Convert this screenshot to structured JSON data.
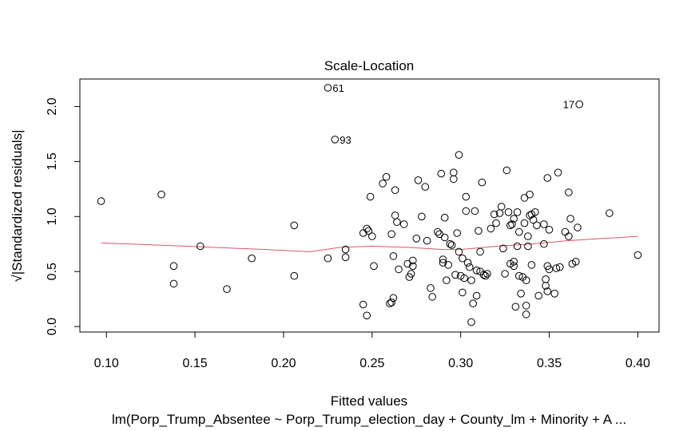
{
  "chart_data": {
    "type": "scatter",
    "title": "Scale-Location",
    "xlabel": "Fitted values",
    "ylabel": "√|Standardized residuals|",
    "subtitle": "lm(Porp_Trump_Absentee ~ Porp_Trump_election_day + County_lm + Minority + A ...",
    "xlim": [
      0.085,
      0.412
    ],
    "ylim": [
      -0.05,
      2.25
    ],
    "x_ticks": [
      0.1,
      0.15,
      0.2,
      0.25,
      0.3,
      0.35,
      0.4
    ],
    "x_tick_labels": [
      "0.10",
      "0.15",
      "0.20",
      "0.25",
      "0.30",
      "0.35",
      "0.40"
    ],
    "y_ticks": [
      0.0,
      0.5,
      1.0,
      1.5,
      2.0
    ],
    "y_tick_labels": [
      "0.0",
      "0.5",
      "1.0",
      "1.5",
      "2.0"
    ],
    "point_color": "#000000",
    "smooth_color": "#DF536B",
    "points": [
      [
        0.097,
        1.14
      ],
      [
        0.131,
        1.2
      ],
      [
        0.138,
        0.55
      ],
      [
        0.138,
        0.39
      ],
      [
        0.153,
        0.73
      ],
      [
        0.168,
        0.34
      ],
      [
        0.182,
        0.62
      ],
      [
        0.206,
        0.92
      ],
      [
        0.206,
        0.46
      ],
      [
        0.225,
        0.62
      ],
      [
        0.235,
        0.7
      ],
      [
        0.235,
        0.63
      ],
      [
        0.245,
        0.85
      ],
      [
        0.245,
        0.2
      ],
      [
        0.247,
        0.1
      ],
      [
        0.247,
        0.89
      ],
      [
        0.248,
        0.87
      ],
      [
        0.249,
        1.18
      ],
      [
        0.25,
        0.82
      ],
      [
        0.251,
        0.55
      ],
      [
        0.256,
        1.3
      ],
      [
        0.258,
        1.36
      ],
      [
        0.26,
        0.21
      ],
      [
        0.261,
        0.22
      ],
      [
        0.261,
        0.84
      ],
      [
        0.262,
        0.64
      ],
      [
        0.262,
        0.26
      ],
      [
        0.263,
        1.01
      ],
      [
        0.263,
        1.24
      ],
      [
        0.264,
        0.95
      ],
      [
        0.265,
        0.52
      ],
      [
        0.268,
        0.93
      ],
      [
        0.27,
        0.57
      ],
      [
        0.271,
        0.45
      ],
      [
        0.272,
        0.48
      ],
      [
        0.273,
        0.6
      ],
      [
        0.273,
        0.55
      ],
      [
        0.275,
        0.8
      ],
      [
        0.276,
        1.33
      ],
      [
        0.278,
        1.0
      ],
      [
        0.28,
        1.27
      ],
      [
        0.281,
        0.78
      ],
      [
        0.283,
        0.35
      ],
      [
        0.284,
        0.27
      ],
      [
        0.287,
        0.86
      ],
      [
        0.288,
        0.84
      ],
      [
        0.289,
        1.39
      ],
      [
        0.29,
        0.61
      ],
      [
        0.29,
        0.58
      ],
      [
        0.291,
        0.99
      ],
      [
        0.291,
        0.81
      ],
      [
        0.292,
        0.42
      ],
      [
        0.293,
        0.56
      ],
      [
        0.294,
        0.75
      ],
      [
        0.295,
        0.74
      ],
      [
        0.296,
        1.4
      ],
      [
        0.296,
        1.34
      ],
      [
        0.297,
        0.47
      ],
      [
        0.298,
        0.85
      ],
      [
        0.299,
        1.56
      ],
      [
        0.299,
        0.68
      ],
      [
        0.3,
        0.46
      ],
      [
        0.301,
        0.31
      ],
      [
        0.301,
        0.62
      ],
      [
        0.302,
        0.44
      ],
      [
        0.303,
        1.18
      ],
      [
        0.303,
        1.05
      ],
      [
        0.304,
        0.58
      ],
      [
        0.305,
        0.54
      ],
      [
        0.306,
        0.42
      ],
      [
        0.306,
        0.04
      ],
      [
        0.307,
        0.21
      ],
      [
        0.308,
        1.05
      ],
      [
        0.309,
        0.28
      ],
      [
        0.309,
        0.51
      ],
      [
        0.31,
        0.87
      ],
      [
        0.311,
        0.5
      ],
      [
        0.311,
        0.68
      ],
      [
        0.312,
        1.31
      ],
      [
        0.313,
        0.47
      ],
      [
        0.314,
        0.46
      ],
      [
        0.315,
        0.48
      ],
      [
        0.317,
        0.89
      ],
      [
        0.319,
        1.02
      ],
      [
        0.32,
        0.94
      ],
      [
        0.322,
        1.03
      ],
      [
        0.323,
        1.09
      ],
      [
        0.324,
        0.71
      ],
      [
        0.325,
        0.48
      ],
      [
        0.326,
        1.42
      ],
      [
        0.327,
        1.04
      ],
      [
        0.328,
        0.92
      ],
      [
        0.328,
        0.57
      ],
      [
        0.329,
        0.93
      ],
      [
        0.33,
        0.59
      ],
      [
        0.33,
        0.98
      ],
      [
        0.33,
        0.55
      ],
      [
        0.331,
        0.18
      ],
      [
        0.332,
        1.04
      ],
      [
        0.332,
        0.73
      ],
      [
        0.333,
        0.86
      ],
      [
        0.333,
        0.46
      ],
      [
        0.334,
        0.3
      ],
      [
        0.335,
        0.45
      ],
      [
        0.336,
        0.94
      ],
      [
        0.336,
        1.17
      ],
      [
        0.337,
        0.11
      ],
      [
        0.337,
        0.19
      ],
      [
        0.337,
        0.42
      ],
      [
        0.338,
        0.73
      ],
      [
        0.338,
        0.82
      ],
      [
        0.339,
        1.2
      ],
      [
        0.339,
        1.01
      ],
      [
        0.34,
        1.02
      ],
      [
        0.34,
        0.56
      ],
      [
        0.341,
        0.97
      ],
      [
        0.342,
        1.04
      ],
      [
        0.343,
        0.92
      ],
      [
        0.344,
        0.28
      ],
      [
        0.347,
        0.93
      ],
      [
        0.347,
        0.75
      ],
      [
        0.348,
        0.43
      ],
      [
        0.348,
        0.37
      ],
      [
        0.349,
        0.32
      ],
      [
        0.349,
        1.35
      ],
      [
        0.349,
        0.55
      ],
      [
        0.35,
        0.88
      ],
      [
        0.35,
        0.52
      ],
      [
        0.353,
        0.3
      ],
      [
        0.354,
        0.53
      ],
      [
        0.355,
        1.4
      ],
      [
        0.356,
        0.54
      ],
      [
        0.359,
        0.86
      ],
      [
        0.361,
        0.82
      ],
      [
        0.361,
        1.22
      ],
      [
        0.362,
        0.98
      ],
      [
        0.363,
        0.57
      ],
      [
        0.365,
        0.59
      ],
      [
        0.366,
        0.9
      ],
      [
        0.384,
        1.03
      ],
      [
        0.4,
        0.65
      ],
      [
        0.225,
        2.17
      ],
      [
        0.229,
        1.7
      ],
      [
        0.367,
        2.02
      ]
    ],
    "labeled_points": [
      {
        "id": "61",
        "x": 0.225,
        "y": 2.17,
        "label_side": "right"
      },
      {
        "id": "93",
        "x": 0.229,
        "y": 1.7,
        "label_side": "right"
      },
      {
        "id": "17",
        "x": 0.367,
        "y": 2.02,
        "label_side": "left"
      }
    ],
    "smooth_line": [
      [
        0.097,
        0.76
      ],
      [
        0.13,
        0.74
      ],
      [
        0.16,
        0.72
      ],
      [
        0.19,
        0.7
      ],
      [
        0.215,
        0.68
      ],
      [
        0.232,
        0.72
      ],
      [
        0.25,
        0.73
      ],
      [
        0.27,
        0.72
      ],
      [
        0.29,
        0.7
      ],
      [
        0.3,
        0.7
      ],
      [
        0.32,
        0.73
      ],
      [
        0.34,
        0.75
      ],
      [
        0.36,
        0.78
      ],
      [
        0.38,
        0.8
      ],
      [
        0.4,
        0.82
      ]
    ]
  }
}
